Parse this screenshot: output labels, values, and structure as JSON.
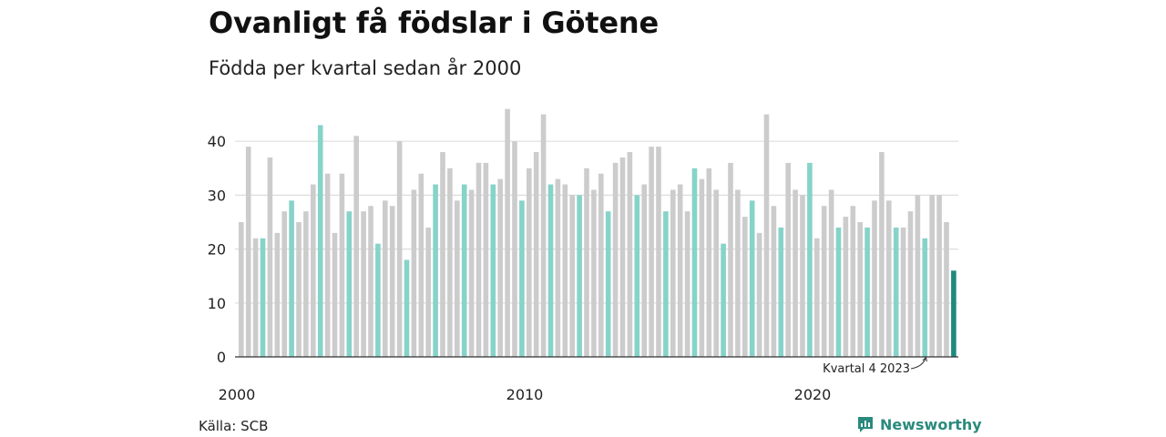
{
  "title": "Ovanligt få födslar i Götene",
  "subtitle": "Födda per kvartal sedan år 2000",
  "source": "Källa: SCB",
  "brand": "Newsworthy",
  "annotation": "Kvartal 4 2023",
  "colors": {
    "other": "#cccccc",
    "q4": "#86d3c9",
    "latest": "#1e8a7e",
    "grid": "#dddddd"
  },
  "chart_data": {
    "type": "bar",
    "ylim": [
      0,
      48
    ],
    "yticks": [
      0,
      10,
      20,
      30,
      40
    ],
    "xticks": [
      {
        "index": 0,
        "label": "2000"
      },
      {
        "index": 40,
        "label": "2010"
      },
      {
        "index": 80,
        "label": "2020"
      }
    ],
    "start": "2000 Q1",
    "values": [
      25,
      39,
      22,
      22,
      37,
      23,
      27,
      29,
      25,
      27,
      32,
      43,
      34,
      23,
      34,
      27,
      41,
      27,
      28,
      21,
      29,
      28,
      40,
      18,
      31,
      34,
      24,
      32,
      38,
      35,
      29,
      32,
      31,
      36,
      36,
      32,
      33,
      46,
      40,
      29,
      35,
      38,
      45,
      32,
      33,
      32,
      30,
      30,
      35,
      31,
      34,
      27,
      36,
      37,
      38,
      30,
      32,
      39,
      39,
      27,
      31,
      32,
      27,
      35,
      33,
      35,
      31,
      21,
      36,
      31,
      26,
      29,
      23,
      45,
      28,
      24,
      36,
      31,
      30,
      36,
      22,
      28,
      31,
      24,
      26,
      28,
      25,
      24,
      29,
      38,
      29,
      24,
      24,
      27,
      30,
      22,
      30,
      30,
      25,
      16
    ],
    "highlight_rule": "Q4 bars in teal, latest quarter dark teal"
  }
}
